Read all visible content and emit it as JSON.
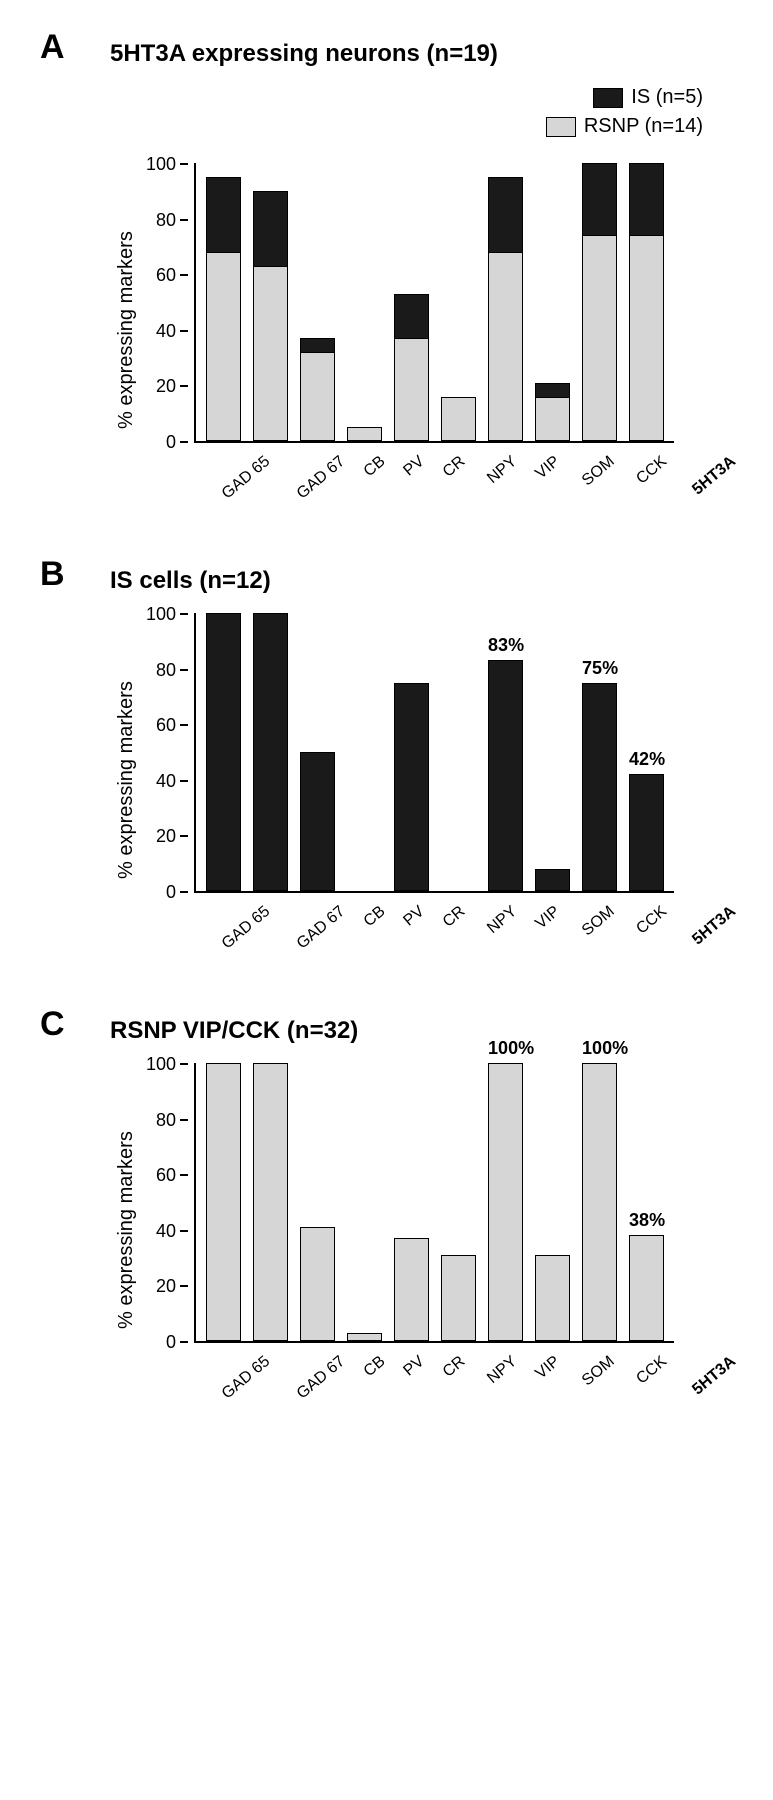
{
  "categories": [
    "GAD 65",
    "GAD 67",
    "CB",
    "PV",
    "CR",
    "NPY",
    "VIP",
    "SOM",
    "CCK",
    "5HT3A"
  ],
  "ylabel": "% expressing markers",
  "ylim": [
    0,
    100
  ],
  "ytick_step": 20,
  "bar_border": "#000000",
  "background": "#ffffff",
  "colors": {
    "IS": "#1a1a1a",
    "RSNP": "#d6d6d6"
  },
  "panelA": {
    "letter": "A",
    "title": "5HT3A expressing neurons (n=19)",
    "legend": [
      {
        "label": "IS (n=5)",
        "color_key": "IS"
      },
      {
        "label": "RSNP (n=14)",
        "color_key": "RSNP"
      }
    ],
    "type": "stacked-bar",
    "series": {
      "RSNP": [
        68,
        63,
        32,
        5,
        37,
        16,
        68,
        16,
        74,
        74
      ],
      "IS": [
        27,
        27,
        5,
        0,
        16,
        0,
        27,
        5,
        26,
        26
      ]
    }
  },
  "panelB": {
    "letter": "B",
    "title": "IS cells (n=12)",
    "type": "bar",
    "color_key": "IS",
    "values": [
      100,
      100,
      50,
      0,
      75,
      0,
      83,
      8,
      75,
      42
    ],
    "value_labels": {
      "6": "83%",
      "8": "75%",
      "9": "42%"
    }
  },
  "panelC": {
    "letter": "C",
    "title": "RSNP VIP/CCK (n=32)",
    "type": "bar",
    "color_key": "RSNP",
    "values": [
      100,
      100,
      41,
      3,
      37,
      31,
      100,
      31,
      100,
      38
    ],
    "value_labels": {
      "6": "100%",
      "8": "100%",
      "9": "38%"
    }
  },
  "title_fontsize": 24,
  "letter_fontsize": 34,
  "axis_fontsize": 18,
  "label_fontsize": 20
}
